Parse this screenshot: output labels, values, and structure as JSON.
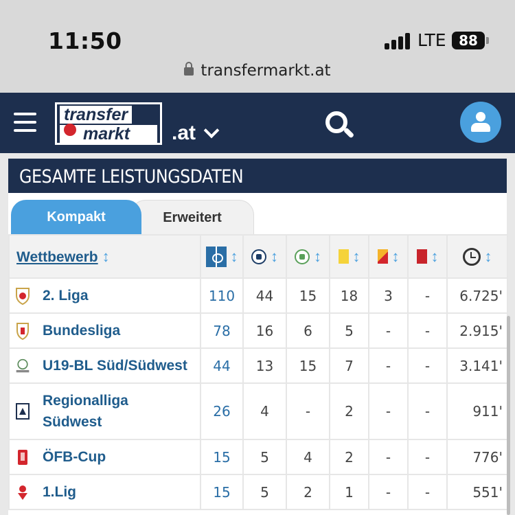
{
  "statusbar": {
    "time": "11:50",
    "network": "LTE",
    "battery": "88"
  },
  "browser": {
    "url": "transfermarkt.at"
  },
  "nav": {
    "logo_top": "transfer",
    "logo_bottom": "markt",
    "domain": ".at"
  },
  "panel": {
    "title": "GESAMTE LEISTUNGSDATEN",
    "tabs": [
      {
        "label": "Kompakt"
      },
      {
        "label": "Erweitert"
      }
    ]
  },
  "table": {
    "comp_header": "Wettbewerb",
    "sort_glyph": "↕",
    "header_icons": [
      "pitch-icon",
      "goal-ball-icon",
      "assist-ball-icon",
      "yellow-card-icon",
      "yellow-red-card-icon",
      "red-card-icon",
      "clock-icon"
    ],
    "colors": {
      "accent": "#4aa0de",
      "nav": "#1d2f4e",
      "link": "#1f5c8c"
    },
    "rows": [
      {
        "competition": "2. Liga",
        "logo": "liga2-logo",
        "apps": "110",
        "goals": "44",
        "assists": "15",
        "yellow": "18",
        "yellow_red": "3",
        "red": "-",
        "minutes": "6.725'"
      },
      {
        "competition": "Bundesliga",
        "logo": "bundesliga-logo",
        "apps": "78",
        "goals": "16",
        "assists": "6",
        "yellow": "5",
        "yellow_red": "-",
        "red": "-",
        "minutes": "2.915'"
      },
      {
        "competition": "U19-BL Süd/Südwest",
        "logo": "u19-logo",
        "apps": "44",
        "goals": "13",
        "assists": "15",
        "yellow": "7",
        "yellow_red": "-",
        "red": "-",
        "minutes": "3.141'"
      },
      {
        "competition": "Regionalliga Südwest",
        "logo": "regionalliga-logo",
        "apps": "26",
        "goals": "4",
        "assists": "-",
        "yellow": "2",
        "yellow_red": "-",
        "red": "-",
        "minutes": "911'"
      },
      {
        "competition": "ÖFB-Cup",
        "logo": "oefb-cup-logo",
        "apps": "15",
        "goals": "5",
        "assists": "4",
        "yellow": "2",
        "yellow_red": "-",
        "red": "-",
        "minutes": "776'"
      },
      {
        "competition": "1.Lig",
        "logo": "lig1-logo",
        "apps": "15",
        "goals": "5",
        "assists": "2",
        "yellow": "1",
        "yellow_red": "-",
        "red": "-",
        "minutes": "551'"
      }
    ]
  }
}
